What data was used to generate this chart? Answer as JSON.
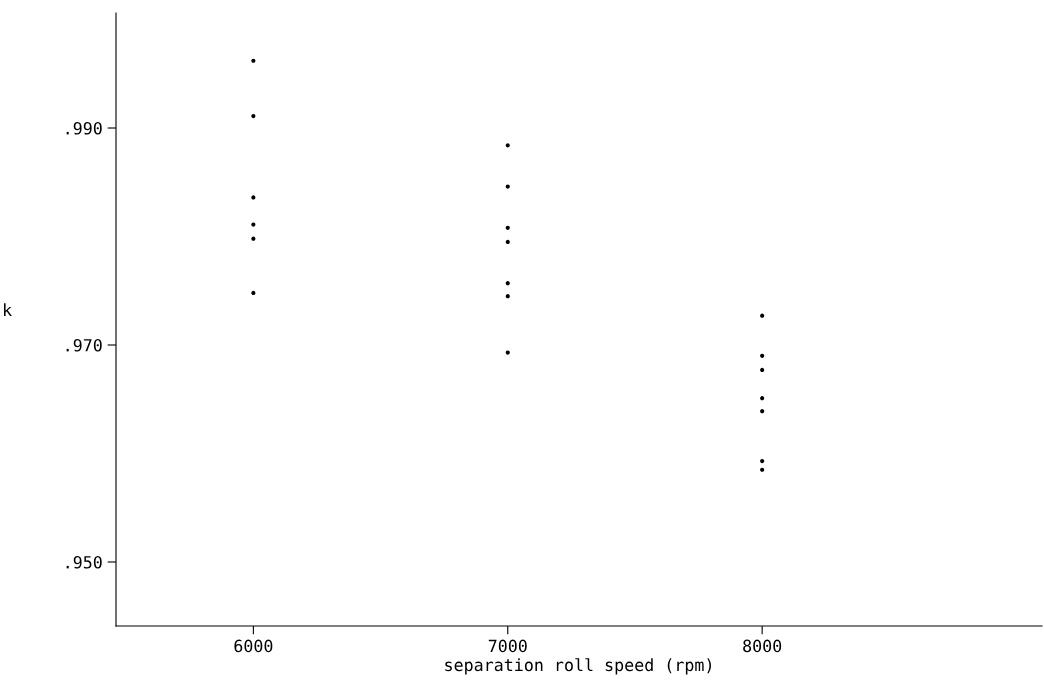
{
  "chart_data": {
    "type": "scatter",
    "xlabel": "separation roll speed (rpm)",
    "ylabel": "k",
    "marker": "circle",
    "series": [
      {
        "color": "#000000",
        "x": [
          6000,
          6000,
          6000,
          6000,
          6000,
          6000,
          7000,
          7000,
          7000,
          7000,
          7000,
          7000,
          7000,
          8000,
          8000,
          8000,
          8000,
          8000,
          8000,
          8000
        ],
        "values": [
          0.9962,
          0.9911,
          0.9836,
          0.9811,
          0.9798,
          0.9748,
          0.9884,
          0.9846,
          0.9808,
          0.9795,
          0.9757,
          0.9745,
          0.9693,
          0.9727,
          0.969,
          0.9677,
          0.9651,
          0.9639,
          0.9593,
          0.9585
        ]
      }
    ],
    "xlim": [
      5460,
      9100
    ],
    "xticks": [
      6000,
      7000,
      8000
    ],
    "ylim": [
      0.9441,
      1.0006
    ],
    "yticks": [
      {
        "value": 0.95,
        "label": ".950"
      },
      {
        "value": 0.97,
        "label": ".970"
      },
      {
        "value": 0.99,
        "label": ".990"
      }
    ],
    "grid": false,
    "legend": false
  }
}
